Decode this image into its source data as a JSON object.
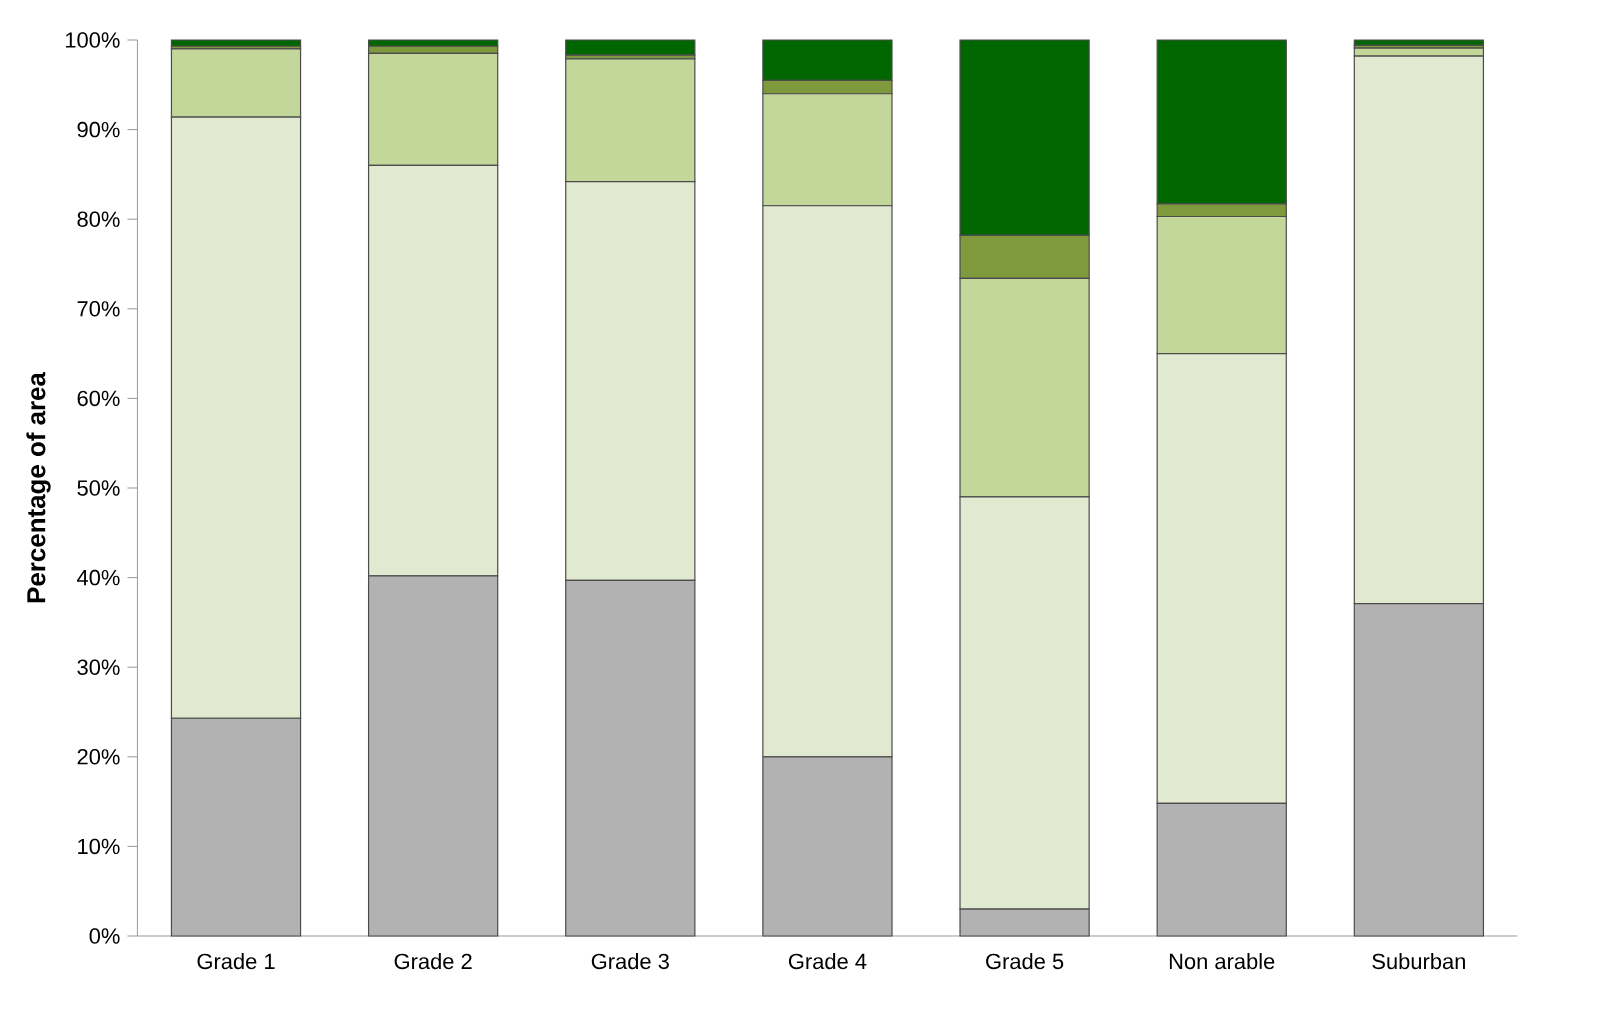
{
  "chart_data": {
    "type": "bar",
    "stacked": true,
    "ylabel": "Percentage of area",
    "categories": [
      "Grade 1",
      "Grade 2",
      "Grade 3",
      "Grade 4",
      "Grade 5",
      "Non arable",
      "Suburban"
    ],
    "series": [
      {
        "color": "#b2b2b2",
        "values": [
          24.3,
          40.2,
          39.7,
          20,
          3,
          14.8,
          37.1
        ]
      },
      {
        "color": "#e1e9d0",
        "values": [
          67.1,
          45.8,
          44.5,
          61.5,
          46,
          50.2,
          61.1
        ]
      },
      {
        "color": "#c4d79b",
        "values": [
          7.6,
          12.5,
          13.7,
          12.5,
          24.4,
          15.3,
          0.9
        ]
      },
      {
        "color": "#7f9a3c",
        "values": [
          0.3,
          0.8,
          0.4,
          1.5,
          4.8,
          1.4,
          0.3
        ]
      },
      {
        "color": "#006600",
        "values": [
          0.7,
          0.7,
          1.7,
          4.5,
          21.8,
          18.3,
          0.6
        ]
      }
    ],
    "ylim": [
      0,
      100
    ],
    "yticks": [
      {
        "value": 0,
        "label": "0%"
      },
      {
        "value": 10,
        "label": "10%"
      },
      {
        "value": 20,
        "label": "20%"
      },
      {
        "value": 30,
        "label": "30%"
      },
      {
        "value": 40,
        "label": "40%"
      },
      {
        "value": 50,
        "label": "50%"
      },
      {
        "value": 60,
        "label": "60%"
      },
      {
        "value": 70,
        "label": "70%"
      },
      {
        "value": 80,
        "label": "80%"
      },
      {
        "value": 90,
        "label": "90%"
      },
      {
        "value": 100,
        "label": "100%"
      }
    ],
    "grid": false
  }
}
